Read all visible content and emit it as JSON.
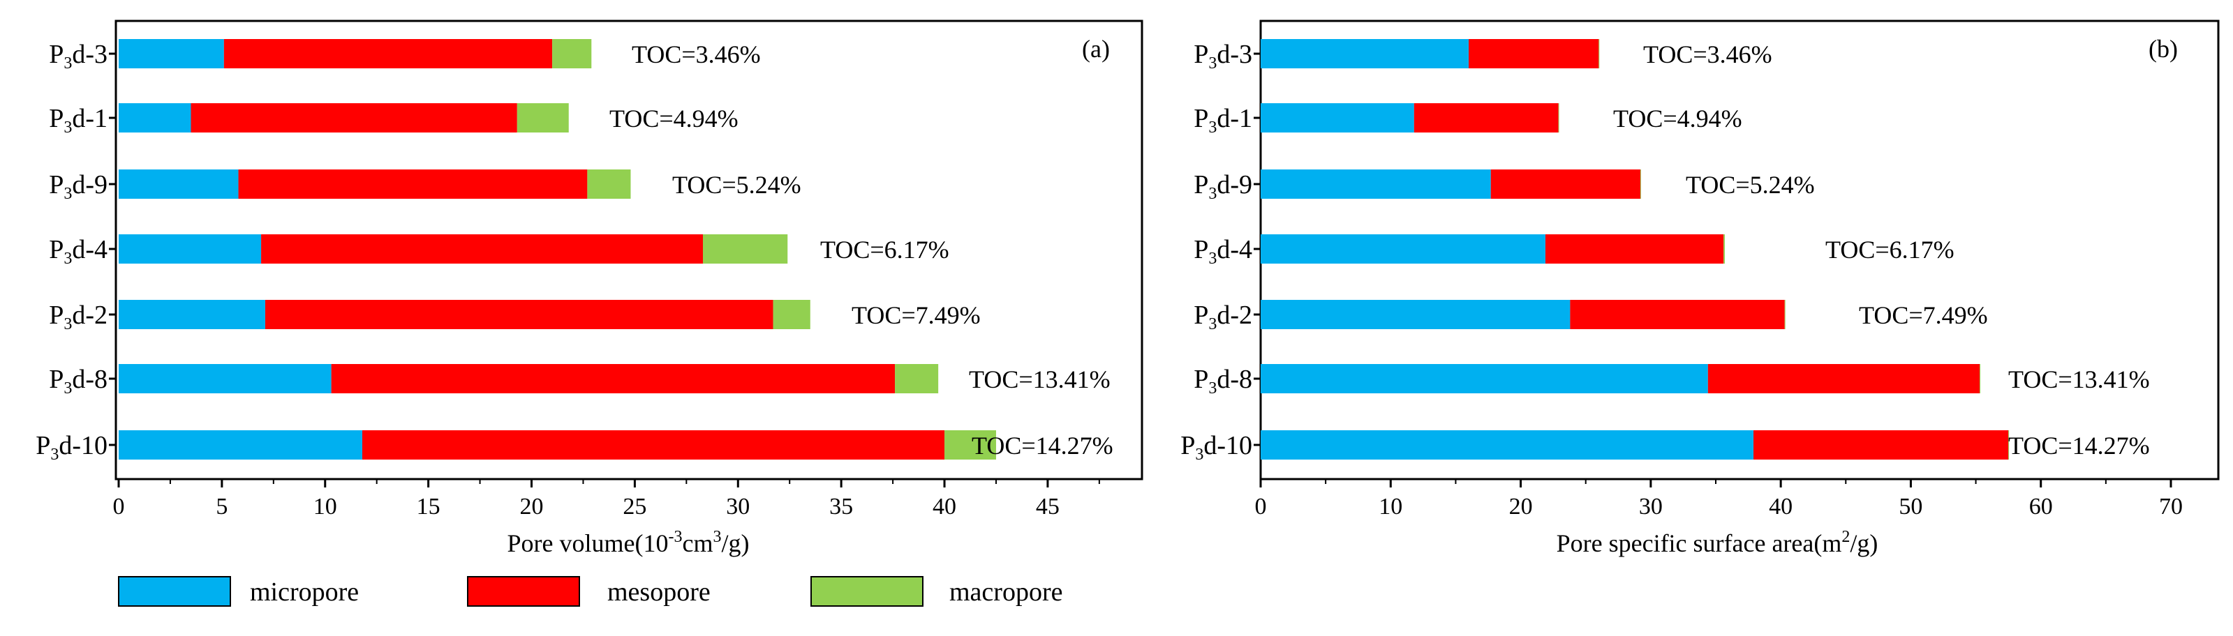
{
  "chart_data": [
    {
      "type": "bar",
      "orientation": "horizontal",
      "stacked": true,
      "panel_label": "(a)",
      "xlabel": "Pore volume(10-3cm3/g)",
      "xlabel_parts": {
        "before": "Pore volume(10",
        "exp1": "-3",
        "middle": "cm",
        "exp2": "3",
        "after": "/g)"
      },
      "xlim": [
        0,
        49.5
      ],
      "xticks": [
        0,
        5,
        10,
        15,
        20,
        25,
        30,
        35,
        40,
        45
      ],
      "categories": [
        "P3d-3",
        "P3d-1",
        "P3d-9",
        "P3d-4",
        "P3d-2",
        "P3d-8",
        "P3d-10"
      ],
      "category_labels": [
        {
          "p": "P",
          "s": "3",
          "rest": "d-3"
        },
        {
          "p": "P",
          "s": "3",
          "rest": "d-1"
        },
        {
          "p": "P",
          "s": "3",
          "rest": "d-9"
        },
        {
          "p": "P",
          "s": "3",
          "rest": "d-4"
        },
        {
          "p": "P",
          "s": "3",
          "rest": "d-2"
        },
        {
          "p": "P",
          "s": "3",
          "rest": "d-8"
        },
        {
          "p": "P",
          "s": "3",
          "rest": "d-10"
        }
      ],
      "series": [
        {
          "name": "micropore",
          "color": "#00b0f0",
          "values": [
            5.1,
            3.5,
            5.8,
            6.9,
            7.1,
            10.3,
            11.8
          ]
        },
        {
          "name": "mesopore",
          "color": "#ff0000",
          "values": [
            15.9,
            15.8,
            16.9,
            21.4,
            24.6,
            27.3,
            28.2
          ]
        },
        {
          "name": "macropore",
          "color": "#92d050",
          "values": [
            1.9,
            2.5,
            2.1,
            4.1,
            1.8,
            2.1,
            2.5
          ]
        }
      ],
      "annotations": [
        "TOC=3.46%",
        "TOC=4.94%",
        "TOC=5.24%",
        "TOC=6.17%",
        "TOC=7.49%",
        "TOC=13.41%",
        "TOC=14.27%"
      ]
    },
    {
      "type": "bar",
      "orientation": "horizontal",
      "stacked": true,
      "panel_label": "(b)",
      "xlabel": "Pore specific surface area(m2/g)",
      "xlabel_parts": {
        "before": "Pore specific surface area(m",
        "exp1": "2",
        "after": "/g)"
      },
      "xlim": [
        0,
        70
      ],
      "xticks": [
        0,
        10,
        20,
        30,
        40,
        50,
        60,
        70
      ],
      "categories": [
        "P3d-3",
        "P3d-1",
        "P3d-9",
        "P3d-4",
        "P3d-2",
        "P3d-8",
        "P3d-10"
      ],
      "category_labels": [
        {
          "p": "P",
          "s": "3",
          "rest": "d-3"
        },
        {
          "p": "P",
          "s": "3",
          "rest": "d-1"
        },
        {
          "p": "P",
          "s": "3",
          "rest": "d-9"
        },
        {
          "p": "P",
          "s": "3",
          "rest": "d-4"
        },
        {
          "p": "P",
          "s": "3",
          "rest": "d-2"
        },
        {
          "p": "P",
          "s": "3",
          "rest": "d-8"
        },
        {
          "p": "P",
          "s": "3",
          "rest": "d-10"
        }
      ],
      "series": [
        {
          "name": "micropore",
          "color": "#00b0f0",
          "values": [
            16.0,
            11.8,
            17.7,
            21.9,
            23.8,
            34.4,
            37.9
          ]
        },
        {
          "name": "mesopore",
          "color": "#ff0000",
          "values": [
            10.0,
            11.1,
            11.5,
            13.7,
            16.5,
            20.9,
            19.6
          ]
        },
        {
          "name": "macropore",
          "color": "#92d050",
          "values": [
            0.05,
            0.05,
            0.05,
            0.1,
            0.05,
            0.05,
            0.05
          ]
        }
      ],
      "annotations": [
        "TOC=3.46%",
        "TOC=4.94%",
        "TOC=5.24%",
        "TOC=6.17%",
        "TOC=7.49%",
        "TOC=13.41%",
        "TOC=14.27%"
      ]
    }
  ],
  "legend": [
    {
      "label": "micropore",
      "color": "#00b0f0"
    },
    {
      "label": "mesopore",
      "color": "#ff0000"
    },
    {
      "label": "macropore",
      "color": "#92d050"
    }
  ]
}
